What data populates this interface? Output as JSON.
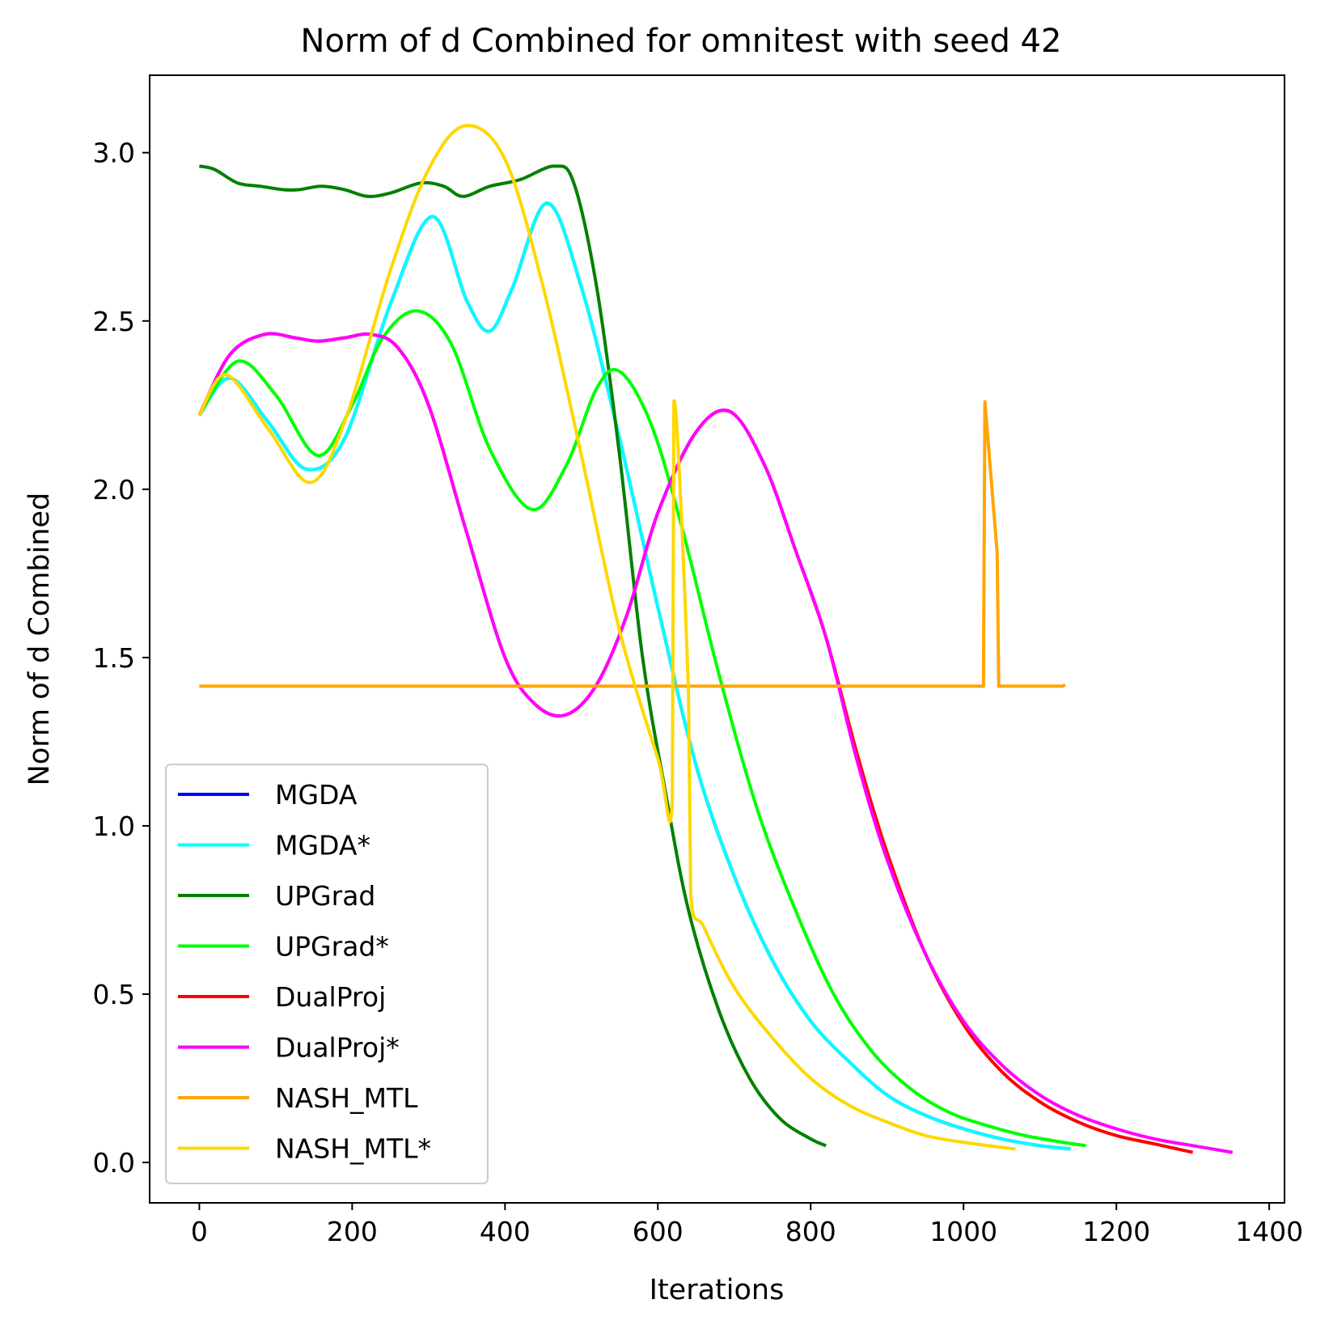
{
  "chart_data": {
    "type": "line",
    "title": "Norm of d Combined for omnitest with seed 42",
    "xlabel": "Iterations",
    "ylabel": "Norm of d Combined",
    "xlim": [
      -65,
      1420
    ],
    "ylim": [
      -0.12,
      3.23
    ],
    "xticks": [
      0,
      200,
      400,
      600,
      800,
      1000,
      1200,
      1400
    ],
    "yticks": [
      0.0,
      0.5,
      1.0,
      1.5,
      2.0,
      2.5,
      3.0
    ],
    "xtick_labels": [
      "0",
      "200",
      "400",
      "600",
      "800",
      "1000",
      "1200",
      "1400"
    ],
    "ytick_labels": [
      "0.0",
      "0.5",
      "1.0",
      "1.5",
      "2.0",
      "2.5",
      "3.0"
    ],
    "grid": false,
    "legend_position": "lower-left",
    "series": [
      {
        "name": "MGDA",
        "color": "#0000ff",
        "x": [
          0,
          40,
          90,
          140,
          190,
          250,
          305,
          350,
          380,
          410,
          455,
          500,
          550,
          600,
          650,
          700,
          750,
          800,
          850,
          900,
          950,
          1000,
          1050,
          1100,
          1140
        ],
        "y": [
          2.22,
          2.33,
          2.2,
          2.06,
          2.15,
          2.55,
          2.81,
          2.56,
          2.47,
          2.6,
          2.85,
          2.6,
          2.15,
          1.65,
          1.18,
          0.85,
          0.6,
          0.42,
          0.3,
          0.2,
          0.14,
          0.1,
          0.07,
          0.05,
          0.04
        ]
      },
      {
        "name": "MGDA*",
        "color": "#00ffff",
        "x": [
          0,
          40,
          90,
          140,
          190,
          250,
          305,
          350,
          380,
          410,
          455,
          500,
          550,
          600,
          650,
          700,
          750,
          800,
          850,
          900,
          950,
          1000,
          1050,
          1100,
          1140
        ],
        "y": [
          2.22,
          2.33,
          2.2,
          2.06,
          2.15,
          2.55,
          2.81,
          2.56,
          2.47,
          2.6,
          2.85,
          2.6,
          2.15,
          1.65,
          1.18,
          0.85,
          0.6,
          0.42,
          0.3,
          0.2,
          0.14,
          0.1,
          0.07,
          0.05,
          0.04
        ]
      },
      {
        "name": "UPGrad",
        "color": "#008000",
        "x": [
          0,
          20,
          50,
          80,
          110,
          130,
          160,
          190,
          220,
          250,
          290,
          320,
          345,
          380,
          420,
          465,
          490,
          520,
          550,
          580,
          610,
          640,
          680,
          720,
          760,
          800,
          820
        ],
        "y": [
          2.96,
          2.95,
          2.91,
          2.9,
          2.89,
          2.89,
          2.9,
          2.89,
          2.87,
          2.88,
          2.91,
          2.9,
          2.87,
          2.9,
          2.92,
          2.96,
          2.91,
          2.6,
          2.1,
          1.5,
          1.1,
          0.75,
          0.45,
          0.25,
          0.13,
          0.07,
          0.05
        ]
      },
      {
        "name": "UPGrad*",
        "color": "#00ff00",
        "x": [
          0,
          50,
          100,
          155,
          200,
          240,
          285,
          330,
          380,
          435,
          480,
          520,
          550,
          590,
          630,
          680,
          730,
          780,
          830,
          880,
          930,
          980,
          1030,
          1080,
          1130,
          1160
        ],
        "y": [
          2.22,
          2.38,
          2.28,
          2.1,
          2.25,
          2.45,
          2.53,
          2.43,
          2.12,
          1.94,
          2.07,
          2.3,
          2.35,
          2.2,
          1.9,
          1.45,
          1.05,
          0.75,
          0.5,
          0.33,
          0.22,
          0.15,
          0.11,
          0.08,
          0.06,
          0.05
        ]
      },
      {
        "name": "DualProj",
        "color": "#ff0000",
        "x": [
          0,
          40,
          85,
          125,
          155,
          190,
          225,
          260,
          300,
          350,
          400,
          440,
          480,
          520,
          560,
          600,
          650,
          695,
          740,
          780,
          820,
          860,
          900,
          950,
          1000,
          1050,
          1100,
          1150,
          1200,
          1250,
          1300
        ],
        "y": [
          2.22,
          2.4,
          2.46,
          2.45,
          2.44,
          2.45,
          2.46,
          2.42,
          2.25,
          1.87,
          1.5,
          1.36,
          1.33,
          1.42,
          1.63,
          1.93,
          2.17,
          2.23,
          2.07,
          1.82,
          1.56,
          1.22,
          0.92,
          0.62,
          0.41,
          0.27,
          0.18,
          0.12,
          0.08,
          0.055,
          0.03
        ]
      },
      {
        "name": "DualProj*",
        "color": "#ff00ff",
        "x": [
          0,
          40,
          85,
          125,
          155,
          190,
          225,
          260,
          300,
          350,
          400,
          440,
          480,
          520,
          560,
          600,
          650,
          695,
          740,
          780,
          820,
          860,
          900,
          950,
          1000,
          1050,
          1100,
          1150,
          1200,
          1250,
          1300,
          1352
        ],
        "y": [
          2.22,
          2.4,
          2.46,
          2.45,
          2.44,
          2.45,
          2.46,
          2.42,
          2.25,
          1.87,
          1.5,
          1.36,
          1.33,
          1.42,
          1.63,
          1.93,
          2.17,
          2.23,
          2.07,
          1.82,
          1.56,
          1.2,
          0.9,
          0.62,
          0.42,
          0.29,
          0.2,
          0.14,
          0.1,
          0.07,
          0.05,
          0.03
        ]
      },
      {
        "name": "NASH_MTL",
        "color": "#ffa500",
        "x": [
          0,
          1026,
          1028,
          1044,
          1046,
          1130,
          1133
        ],
        "y": [
          1.415,
          1.415,
          2.26,
          1.81,
          1.415,
          1.415,
          1.42
        ]
      },
      {
        "name": "NASH_MTL*",
        "color": "#ffd700",
        "x": [
          0,
          35,
          90,
          145,
          190,
          250,
          300,
          348,
          400,
          450,
          500,
          550,
          600,
          619,
          621,
          640,
          643,
          660,
          700,
          750,
          800,
          850,
          900,
          950,
          1000,
          1050,
          1068
        ],
        "y": [
          2.22,
          2.34,
          2.18,
          2.02,
          2.2,
          2.65,
          2.95,
          3.08,
          2.98,
          2.6,
          2.1,
          1.58,
          1.2,
          1.08,
          2.26,
          1.4,
          0.8,
          0.7,
          0.52,
          0.37,
          0.25,
          0.17,
          0.12,
          0.08,
          0.06,
          0.045,
          0.04
        ]
      }
    ]
  }
}
